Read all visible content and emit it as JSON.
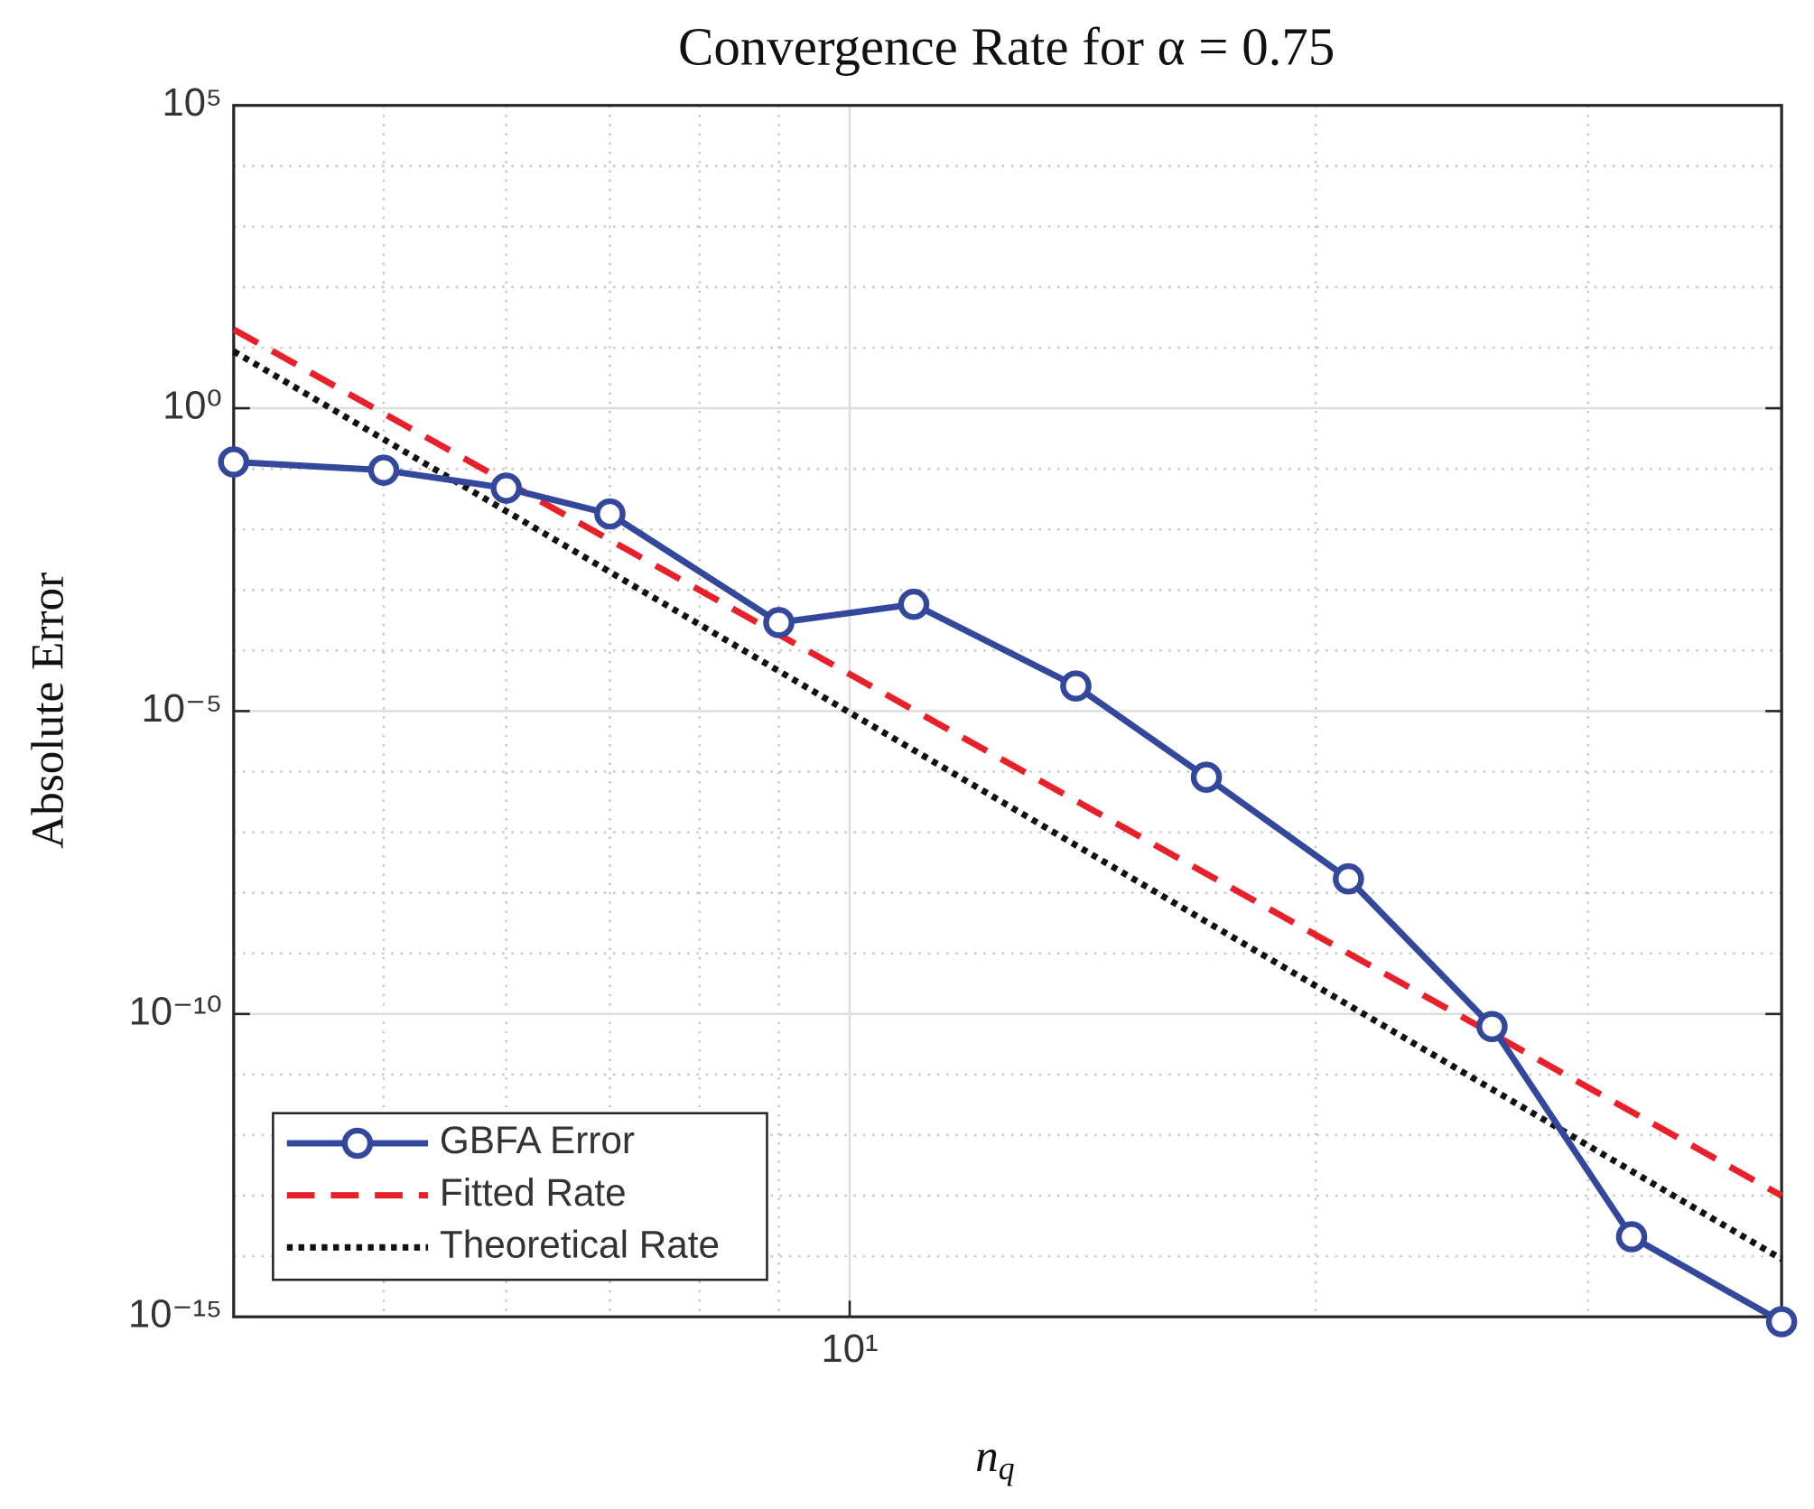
{
  "chart_data": {
    "type": "line",
    "title": "Convergence Rate for α = 0.75",
    "xlabel": "n",
    "xlabel_subscript": "q",
    "ylabel": "Absolute Error",
    "xscale": "log",
    "yscale": "log",
    "grid": true,
    "legend_position": "southwest",
    "xlim": [
      4,
      40
    ],
    "ylim": [
      1e-15,
      100000
    ],
    "xticks": [
      {
        "value": 10,
        "label": "10¹"
      }
    ],
    "minor_xticks": [
      5,
      6,
      7,
      8,
      9,
      20,
      30
    ],
    "yticks": [
      {
        "value": 1e-15,
        "label": "10⁻¹⁵"
      },
      {
        "value": 1e-10,
        "label": "10⁻¹⁰"
      },
      {
        "value": 1e-05,
        "label": "10⁻⁵"
      },
      {
        "value": 1,
        "label": "10⁰"
      },
      {
        "value": 100000,
        "label": "10⁵"
      }
    ],
    "minor_yticks": [
      1e-14,
      1e-13,
      1e-12,
      1e-11,
      1e-09,
      1e-08,
      1e-07,
      1e-06,
      0.0001,
      0.001,
      0.01,
      0.1,
      10,
      100,
      1000,
      10000
    ],
    "series": [
      {
        "name": "GBFA Error",
        "color": "#33479b",
        "style": "solid-marker",
        "x": [
          4,
          5,
          6,
          7,
          9,
          11,
          14,
          17,
          21,
          26,
          32,
          40
        ],
        "values": [
          0.13,
          0.095,
          0.048,
          0.018,
          0.00029,
          0.00058,
          2.6e-05,
          8.1e-07,
          1.7e-08,
          6.2e-11,
          2.1e-14,
          8.3e-16
        ]
      },
      {
        "name": "Fitted Rate",
        "color": "#e8202a",
        "style": "dashed",
        "x": [
          4,
          40
        ],
        "values": [
          20,
          1e-13
        ]
      },
      {
        "name": "Theoretical Rate",
        "color": "#111111",
        "style": "dotted",
        "x": [
          4,
          40
        ],
        "values": [
          8.7,
          9e-15
        ]
      }
    ]
  }
}
